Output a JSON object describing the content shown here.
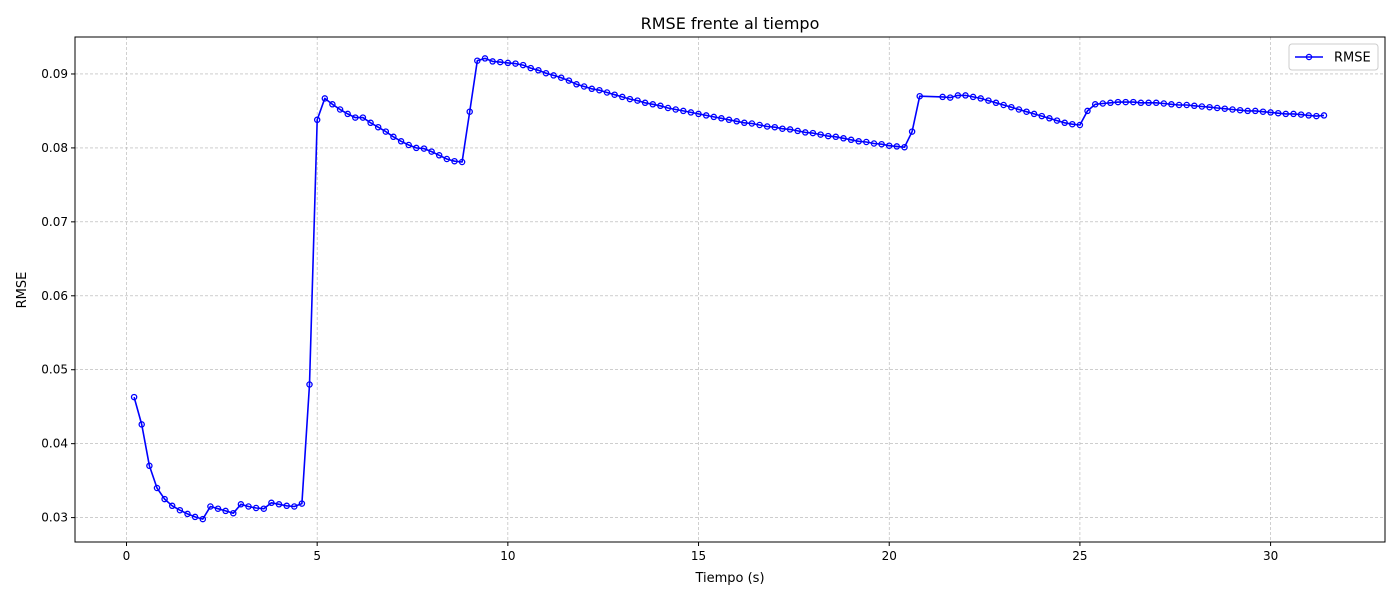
{
  "chart_data": {
    "type": "line",
    "title": "RMSE frente al tiempo",
    "xlabel": "Tiempo (s)",
    "ylabel": "RMSE",
    "xlim": [
      -1.35,
      33.0
    ],
    "ylim": [
      0.0267,
      0.095
    ],
    "xticks": [
      0,
      5,
      10,
      15,
      20,
      25,
      30
    ],
    "yticks": [
      0.03,
      0.04,
      0.05,
      0.06,
      0.07,
      0.08,
      0.09
    ],
    "ytick_labels": [
      "0.03",
      "0.04",
      "0.05",
      "0.06",
      "0.07",
      "0.08",
      "0.09"
    ],
    "grid": true,
    "legend_position": "top-right",
    "series": [
      {
        "name": "RMSE",
        "color": "#0000ff",
        "marker": "circle-open",
        "x": [
          0.2,
          0.4,
          0.6,
          0.8,
          1.0,
          1.2,
          1.4,
          1.6,
          1.8,
          2.0,
          2.2,
          2.4,
          2.6,
          2.8,
          3.0,
          3.2,
          3.4,
          3.6,
          3.8,
          4.0,
          4.2,
          4.4,
          4.6,
          4.8,
          5.0,
          5.2,
          5.4,
          5.6,
          5.8,
          6.0,
          6.2,
          6.4,
          6.6,
          6.8,
          7.0,
          7.2,
          7.4,
          7.6,
          7.8,
          8.0,
          8.2,
          8.4,
          8.6,
          8.8,
          9.0,
          9.2,
          9.4,
          9.6,
          9.8,
          10.0,
          10.2,
          10.4,
          10.6,
          10.8,
          11.0,
          11.2,
          11.4,
          11.6,
          11.8,
          12.0,
          12.2,
          12.4,
          12.6,
          12.8,
          13.0,
          13.2,
          13.4,
          13.6,
          13.8,
          14.0,
          14.2,
          14.4,
          14.6,
          14.8,
          15.0,
          15.2,
          15.4,
          15.6,
          15.8,
          16.0,
          16.2,
          16.4,
          16.6,
          16.8,
          17.0,
          17.2,
          17.4,
          17.6,
          17.8,
          18.0,
          18.2,
          18.4,
          18.6,
          18.8,
          19.0,
          19.2,
          19.4,
          19.6,
          19.8,
          20.0,
          20.2,
          20.4,
          20.6,
          20.8,
          21.4,
          21.6,
          21.8,
          22.0,
          22.2,
          22.4,
          22.6,
          22.8,
          23.0,
          23.2,
          23.4,
          23.6,
          23.8,
          24.0,
          24.2,
          24.4,
          24.6,
          24.8,
          25.0,
          25.2,
          25.4,
          25.6,
          25.8,
          26.0,
          26.2,
          26.4,
          26.6,
          26.8,
          27.0,
          27.2,
          27.4,
          27.6,
          27.8,
          28.0,
          28.2,
          28.4,
          28.6,
          28.8,
          29.0,
          29.2,
          29.4,
          29.6,
          29.8,
          30.0,
          30.2,
          30.4,
          30.6,
          30.8,
          31.0,
          31.2,
          31.4
        ],
        "y": [
          0.0463,
          0.0426,
          0.037,
          0.034,
          0.0325,
          0.0316,
          0.031,
          0.0305,
          0.0301,
          0.0298,
          0.0315,
          0.0312,
          0.0309,
          0.0306,
          0.0318,
          0.0315,
          0.0313,
          0.0312,
          0.032,
          0.0318,
          0.0316,
          0.0315,
          0.0319,
          0.048,
          0.0838,
          0.0867,
          0.0859,
          0.0852,
          0.0846,
          0.0841,
          0.0841,
          0.0834,
          0.0828,
          0.0822,
          0.0815,
          0.0809,
          0.0804,
          0.08,
          0.0799,
          0.0795,
          0.079,
          0.0785,
          0.0782,
          0.0781,
          0.0849,
          0.0918,
          0.0921,
          0.0917,
          0.0916,
          0.0915,
          0.0914,
          0.0912,
          0.0908,
          0.0905,
          0.0901,
          0.0898,
          0.0895,
          0.0891,
          0.0886,
          0.0883,
          0.088,
          0.0878,
          0.0875,
          0.0872,
          0.0869,
          0.0866,
          0.0864,
          0.0861,
          0.0859,
          0.0857,
          0.0854,
          0.0852,
          0.085,
          0.0848,
          0.0846,
          0.0844,
          0.0842,
          0.084,
          0.0838,
          0.0836,
          0.0834,
          0.0833,
          0.0831,
          0.0829,
          0.0828,
          0.0826,
          0.0825,
          0.0823,
          0.0821,
          0.082,
          0.0818,
          0.0816,
          0.0815,
          0.0813,
          0.0811,
          0.0809,
          0.0808,
          0.0806,
          0.0805,
          0.0803,
          0.0802,
          0.0801,
          0.0822,
          0.087,
          0.0869,
          0.0868,
          0.0871,
          0.0871,
          0.0869,
          0.0867,
          0.0864,
          0.0861,
          0.0858,
          0.0855,
          0.0852,
          0.0849,
          0.0846,
          0.0843,
          0.084,
          0.0837,
          0.0834,
          0.0832,
          0.0831,
          0.085,
          0.0859,
          0.086,
          0.0861,
          0.0862,
          0.0862,
          0.0862,
          0.0861,
          0.0861,
          0.0861,
          0.086,
          0.0859,
          0.0858,
          0.0858,
          0.0857,
          0.0856,
          0.0855,
          0.0854,
          0.0853,
          0.0852,
          0.0851,
          0.085,
          0.085,
          0.0849,
          0.0848,
          0.0847,
          0.0846,
          0.0846,
          0.0845,
          0.0844,
          0.0843,
          0.0844
        ]
      }
    ]
  }
}
